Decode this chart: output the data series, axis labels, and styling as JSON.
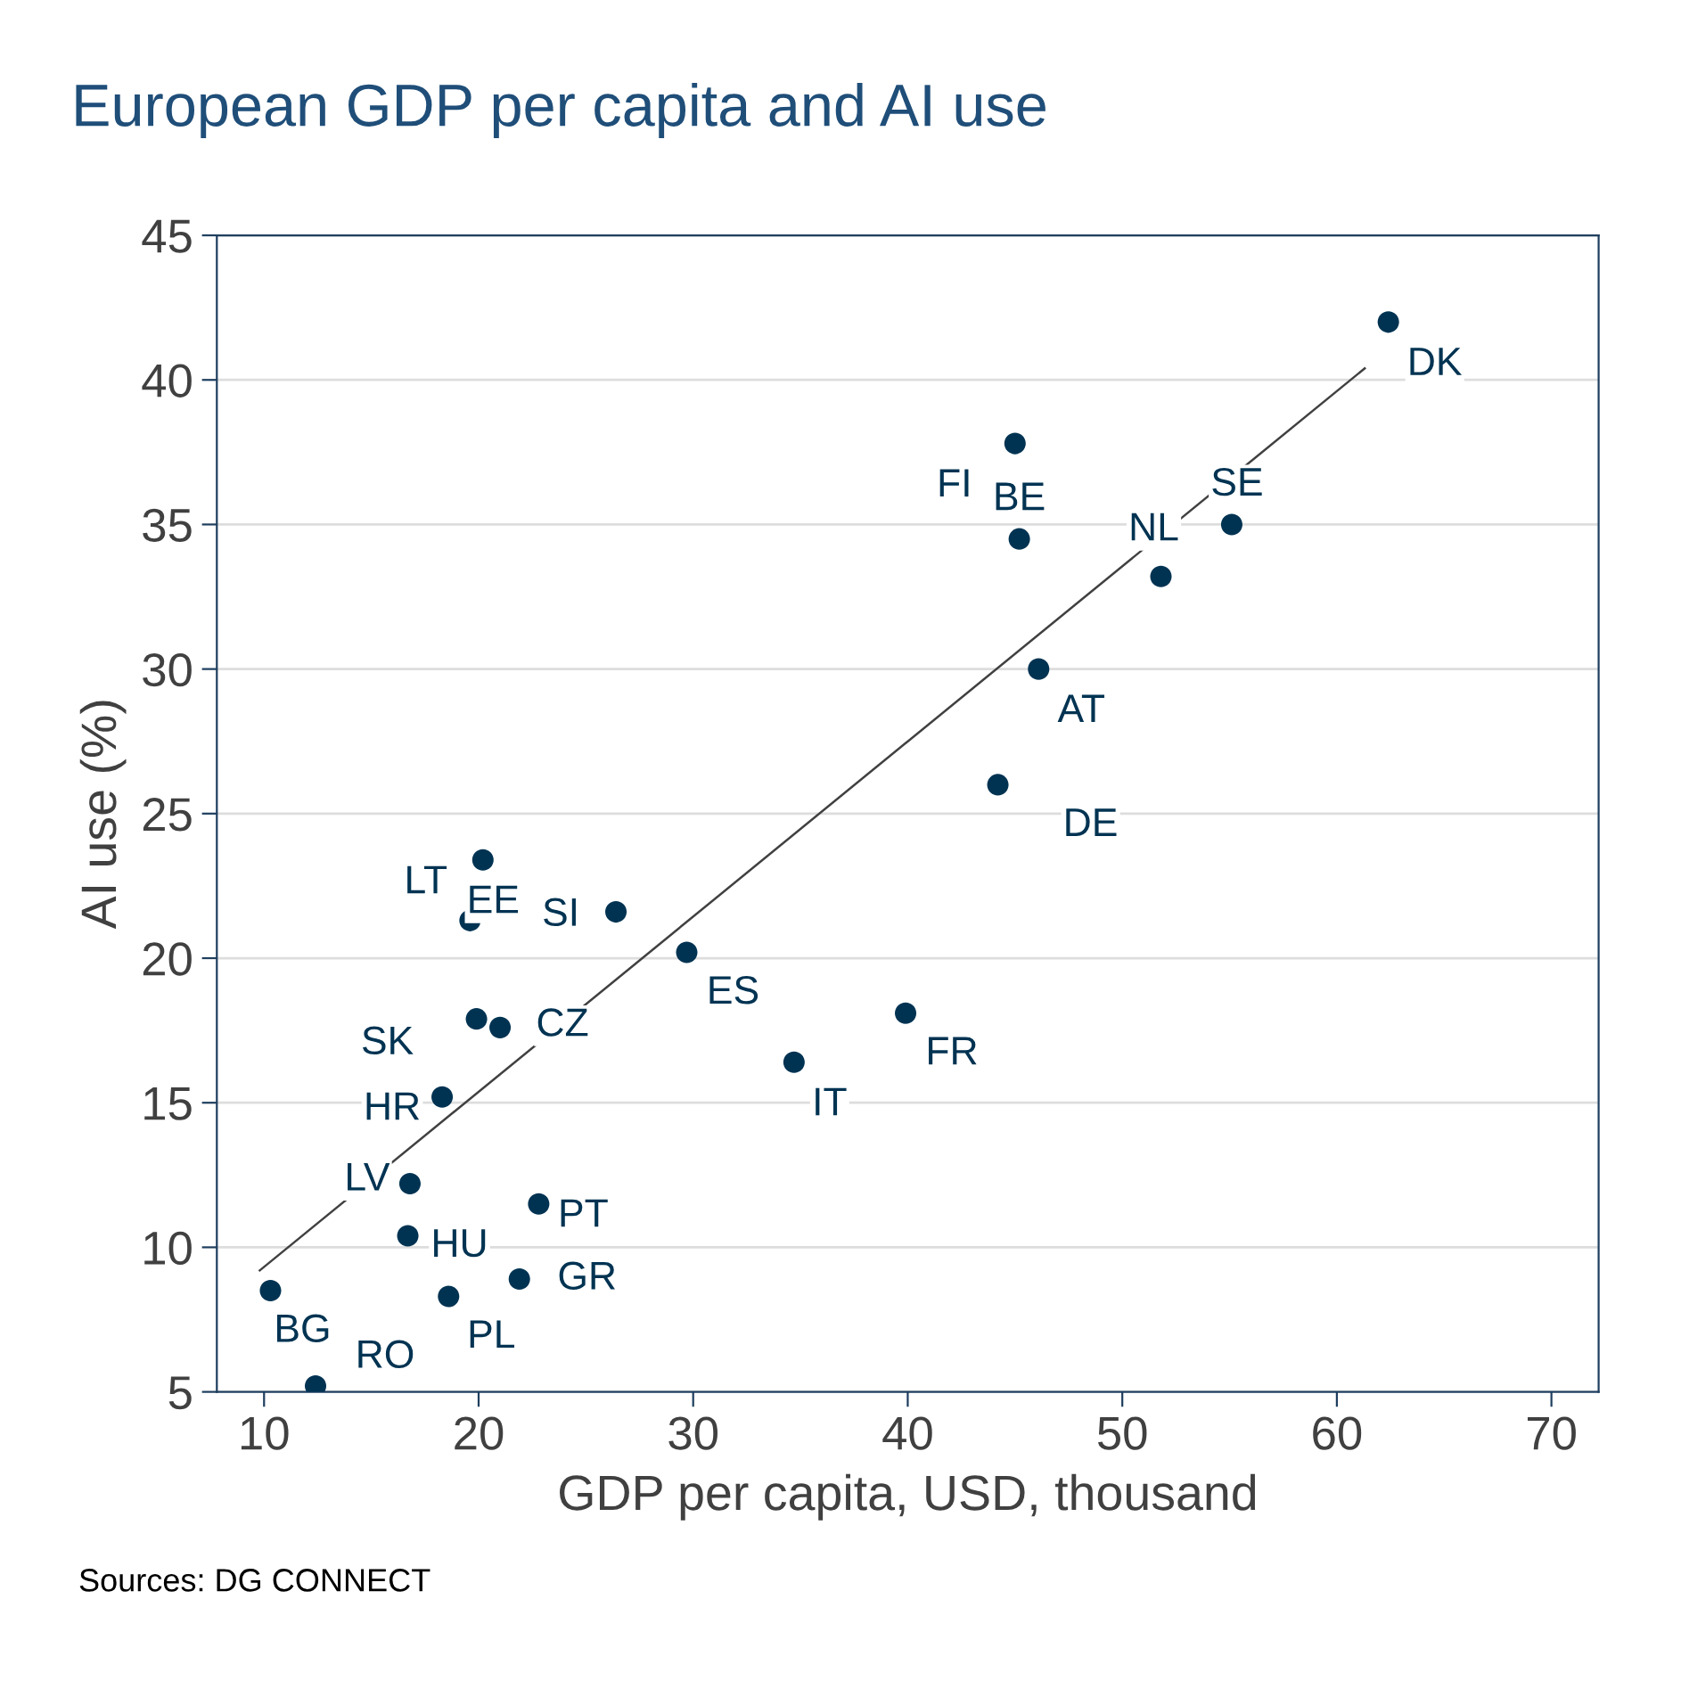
{
  "chart_data": {
    "type": "scatter",
    "title": "European GDP per capita and AI use",
    "xlabel": "GDP per capita, USD, thousand",
    "ylabel": "AI use (%)",
    "xlim": [
      7.8,
      72.2
    ],
    "xticks": [
      10,
      20,
      30,
      40,
      50,
      60,
      70
    ],
    "ylim": [
      5,
      45
    ],
    "yticks": [
      5,
      10,
      15,
      20,
      25,
      30,
      35,
      40,
      45
    ],
    "grid": "y",
    "series": [
      {
        "marker": "circle",
        "color": "#003352",
        "x": [
          62.4,
          45.0,
          45.2,
          55.1,
          51.8,
          46.1,
          44.2,
          29.7,
          39.9,
          34.7,
          20.2,
          19.6,
          26.4,
          19.9,
          21.0,
          18.3,
          16.8,
          16.7,
          22.8,
          21.9,
          18.6,
          10.3,
          12.4
        ],
        "values": [
          42.0,
          37.8,
          34.5,
          35.0,
          33.2,
          30.0,
          26.0,
          20.2,
          18.1,
          16.4,
          23.4,
          21.3,
          21.6,
          17.9,
          17.6,
          15.2,
          12.2,
          10.4,
          11.5,
          8.9,
          8.3,
          8.5,
          5.2
        ],
        "value_labels": [
          "DK",
          "FI",
          "BE",
          "SE",
          "NL",
          "AT",
          "DE",
          "ES",
          "FR",
          "IT",
          "LT",
          "EE",
          "SI",
          "SK",
          "CZ",
          "HR",
          "LV",
          "HU",
          "PT",
          "GR",
          "PL",
          "BG",
          "RO"
        ]
      },
      {
        "type": "line",
        "marker": "none",
        "color": "#404040",
        "x": [
          9.8,
          61.3
        ],
        "values": [
          9.2,
          40.4
        ]
      }
    ],
    "annotations": [
      "Sources: DG CONNECT"
    ]
  }
}
